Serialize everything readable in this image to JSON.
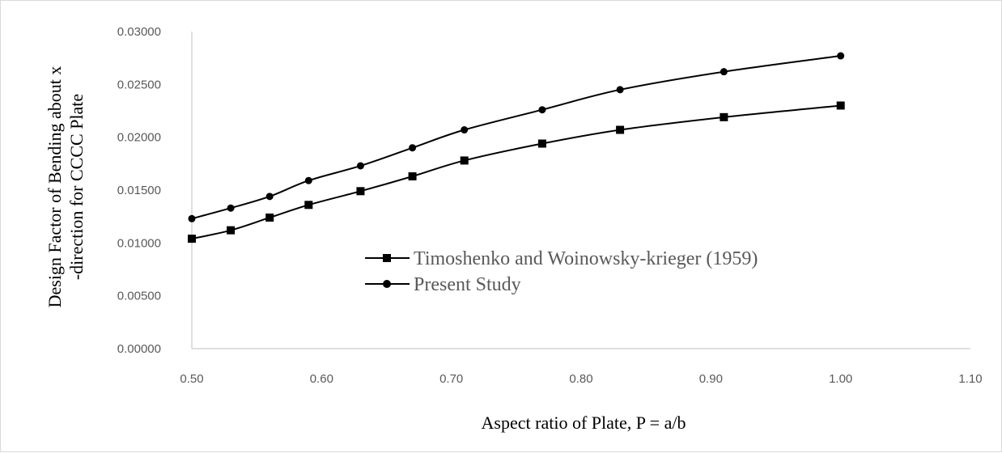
{
  "chart_data": {
    "type": "line",
    "xlabel": "Aspect ratio of Plate, P = a/b",
    "ylabel_lines": [
      "Design Factor of Bending about x",
      "-direction for CCCC Plate"
    ],
    "xlim": [
      0.5,
      1.1
    ],
    "ylim": [
      0,
      0.03
    ],
    "x_ticks": [
      0.5,
      0.6,
      0.7,
      0.8,
      0.9,
      1.0,
      1.1
    ],
    "x_tick_labels": [
      "0.50",
      "0.60",
      "0.70",
      "0.80",
      "0.90",
      "1.00",
      "1.10"
    ],
    "y_ticks": [
      0,
      0.005,
      0.01,
      0.015,
      0.02,
      0.025,
      0.03
    ],
    "y_tick_labels": [
      "0.00000",
      "0.00500",
      "0.01000",
      "0.01500",
      "0.02000",
      "0.02500",
      "0.03000"
    ],
    "grid": false,
    "legend_position": "center",
    "series": [
      {
        "name": "Timoshenko and Woinowsky-krieger (1959)",
        "marker": "square",
        "color": "#000000",
        "x": [
          0.5,
          0.53,
          0.56,
          0.59,
          0.63,
          0.67,
          0.71,
          0.77,
          0.83,
          0.91,
          1.0
        ],
        "y": [
          0.0104,
          0.0112,
          0.0124,
          0.0136,
          0.0149,
          0.0163,
          0.0178,
          0.0194,
          0.0207,
          0.0219,
          0.023
        ]
      },
      {
        "name": "Present Study",
        "marker": "circle",
        "color": "#000000",
        "x": [
          0.5,
          0.53,
          0.56,
          0.59,
          0.63,
          0.67,
          0.71,
          0.77,
          0.83,
          0.91,
          1.0
        ],
        "y": [
          0.0123,
          0.0133,
          0.0144,
          0.0159,
          0.0173,
          0.019,
          0.0207,
          0.0226,
          0.0245,
          0.0262,
          0.0277
        ]
      }
    ]
  }
}
